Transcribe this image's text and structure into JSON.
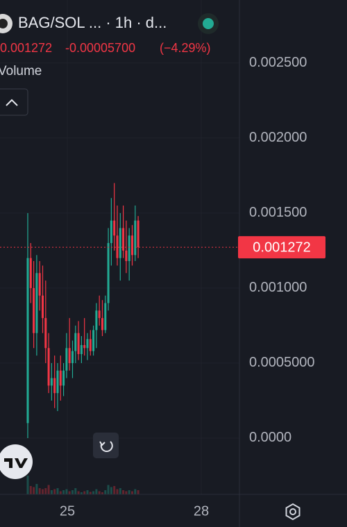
{
  "chart_data": {
    "type": "candlestick",
    "header": {
      "symbol": "BAG/SOL ... · 1h · d...",
      "last": "0.001272",
      "change": "-0.00005700",
      "change_pct": "(−4.29%)",
      "indicator": "Volume"
    },
    "up_color": "#22ab94",
    "down_color": "#f23645",
    "last_price": 0.001272,
    "ylim": [
      -0.000375,
      0.00292
    ],
    "yticks": [
      {
        "value": 0,
        "label": "0.0000"
      },
      {
        "value": 0.0005,
        "label": "0.0005000"
      },
      {
        "value": 0.001,
        "label": "0.001000"
      },
      {
        "value": 0.0015,
        "label": "0.001500"
      },
      {
        "value": 0.002,
        "label": "0.002000"
      },
      {
        "value": 0.0025,
        "label": "0.002500"
      }
    ],
    "xlim": [
      -9.3,
      70.93
    ],
    "xticks": [
      {
        "value": 13.26,
        "label": "25"
      },
      {
        "value": 58.14,
        "label": "28"
      }
    ],
    "volume_lim": [
      0,
      100
    ],
    "candles": [
      {
        "open": 0.0001,
        "high": 0.0015,
        "low": 0.0,
        "close": 0.0012
      },
      {
        "open": 0.0012,
        "high": 0.0013,
        "low": 0.0009,
        "close": 0.001
      },
      {
        "open": 0.001,
        "high": 0.00118,
        "low": 0.0006,
        "close": 0.0007
      },
      {
        "open": 0.0007,
        "high": 0.00122,
        "low": 0.00055,
        "close": 0.0011
      },
      {
        "open": 0.0011,
        "high": 0.00118,
        "low": 0.00085,
        "close": 0.00095
      },
      {
        "open": 0.00095,
        "high": 0.00115,
        "low": 0.0007,
        "close": 0.0008
      },
      {
        "open": 0.0008,
        "high": 0.00105,
        "low": 0.0005,
        "close": 0.0006
      },
      {
        "open": 0.0006,
        "high": 0.0007,
        "low": 0.0003,
        "close": 0.00035
      },
      {
        "open": 0.00035,
        "high": 0.0005,
        "low": 0.00025,
        "close": 0.0004
      },
      {
        "open": 0.0004,
        "high": 0.00055,
        "low": 0.0002,
        "close": 0.0003
      },
      {
        "open": 0.0003,
        "high": 0.0005,
        "low": 0.00018,
        "close": 0.00045
      },
      {
        "open": 0.00045,
        "high": 0.00055,
        "low": 0.00025,
        "close": 0.00035
      },
      {
        "open": 0.00035,
        "high": 0.0005,
        "low": 0.00028,
        "close": 0.00045
      },
      {
        "open": 0.00045,
        "high": 0.0007,
        "low": 0.0004,
        "close": 0.0006
      },
      {
        "open": 0.0006,
        "high": 0.0008,
        "low": 0.00045,
        "close": 0.0005
      },
      {
        "open": 0.0005,
        "high": 0.00065,
        "low": 0.0004,
        "close": 0.00058
      },
      {
        "open": 0.00058,
        "high": 0.00075,
        "low": 0.0005,
        "close": 0.0007
      },
      {
        "open": 0.0007,
        "high": 0.00078,
        "low": 0.00052,
        "close": 0.00056
      },
      {
        "open": 0.00056,
        "high": 0.00068,
        "low": 0.0005,
        "close": 0.00062
      },
      {
        "open": 0.00062,
        "high": 0.0008,
        "low": 0.00055,
        "close": 0.0006
      },
      {
        "open": 0.0006,
        "high": 0.0007,
        "low": 0.00052,
        "close": 0.00066
      },
      {
        "open": 0.00066,
        "high": 0.00072,
        "low": 0.00055,
        "close": 0.00058
      },
      {
        "open": 0.00058,
        "high": 0.00075,
        "low": 0.00055,
        "close": 0.00072
      },
      {
        "open": 0.00072,
        "high": 0.0009,
        "low": 0.0006,
        "close": 0.00085
      },
      {
        "open": 0.00085,
        "high": 0.00095,
        "low": 0.00075,
        "close": 0.0008
      },
      {
        "open": 0.0008,
        "high": 0.00092,
        "low": 0.00068,
        "close": 0.00072
      },
      {
        "open": 0.00072,
        "high": 0.00095,
        "low": 0.0007,
        "close": 0.0009
      },
      {
        "open": 0.0009,
        "high": 0.0014,
        "low": 0.00085,
        "close": 0.0013
      },
      {
        "open": 0.0013,
        "high": 0.0016,
        "low": 0.00115,
        "close": 0.00145
      },
      {
        "open": 0.00145,
        "high": 0.0017,
        "low": 0.00125,
        "close": 0.00135
      },
      {
        "open": 0.00135,
        "high": 0.00155,
        "low": 0.00115,
        "close": 0.0012
      },
      {
        "open": 0.0012,
        "high": 0.0015,
        "low": 0.00105,
        "close": 0.0014
      },
      {
        "open": 0.0014,
        "high": 0.00155,
        "low": 0.0012,
        "close": 0.00125
      },
      {
        "open": 0.00125,
        "high": 0.00145,
        "low": 0.0011,
        "close": 0.00118
      },
      {
        "open": 0.00118,
        "high": 0.0014,
        "low": 0.00105,
        "close": 0.00135
      },
      {
        "open": 0.00135,
        "high": 0.00142,
        "low": 0.00115,
        "close": 0.00122
      },
      {
        "open": 0.00122,
        "high": 0.00155,
        "low": 0.00118,
        "close": 0.00145
      },
      {
        "open": 0.00145,
        "high": 0.00148,
        "low": 0.0012,
        "close": 0.001272
      }
    ],
    "volume": [
      90,
      40,
      35,
      50,
      30,
      25,
      30,
      45,
      20,
      25,
      30,
      15,
      20,
      25,
      15,
      20,
      30,
      15,
      10,
      15,
      20,
      12,
      15,
      25,
      15,
      10,
      20,
      45,
      35,
      40,
      25,
      30,
      20,
      15,
      20,
      15,
      25,
      20
    ]
  }
}
